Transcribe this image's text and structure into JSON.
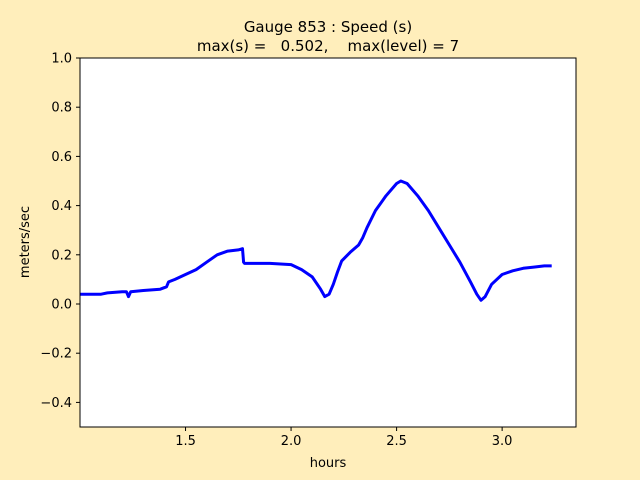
{
  "chart_data": {
    "type": "line",
    "title_line1": "Gauge 853 : Speed (s)",
    "title_line2": "max(s) =   0.502,    max(level) = 7",
    "xlabel": "hours",
    "ylabel": "meters/sec",
    "xlim": [
      1.0,
      3.35
    ],
    "ylim": [
      -0.5,
      1.0
    ],
    "xticks": [
      1.5,
      2.0,
      2.5,
      3.0
    ],
    "xtick_labels": [
      "1.5",
      "2.0",
      "2.5",
      "3.0"
    ],
    "yticks": [
      -0.4,
      -0.2,
      0.0,
      0.2,
      0.4,
      0.6,
      0.8,
      1.0
    ],
    "ytick_labels": [
      "−0.4",
      "−0.2",
      "0.0",
      "0.2",
      "0.4",
      "0.6",
      "0.8",
      "1.0"
    ],
    "grid": false,
    "series": [
      {
        "color": "#0000ff",
        "x": [
          1.0,
          1.1,
          1.13,
          1.2,
          1.22,
          1.23,
          1.24,
          1.3,
          1.38,
          1.41,
          1.42,
          1.45,
          1.5,
          1.55,
          1.6,
          1.65,
          1.7,
          1.75,
          1.77,
          1.775,
          1.78,
          1.82,
          1.9,
          2.0,
          2.05,
          2.1,
          2.14,
          2.16,
          2.18,
          2.2,
          2.22,
          2.24,
          2.28,
          2.32,
          2.34,
          2.36,
          2.4,
          2.45,
          2.5,
          2.52,
          2.55,
          2.6,
          2.65,
          2.7,
          2.75,
          2.8,
          2.85,
          2.88,
          2.9,
          2.92,
          2.95,
          3.0,
          3.05,
          3.1,
          3.15,
          3.2,
          3.235
        ],
        "y": [
          0.04,
          0.04,
          0.045,
          0.05,
          0.05,
          0.03,
          0.05,
          0.055,
          0.06,
          0.07,
          0.09,
          0.1,
          0.12,
          0.14,
          0.17,
          0.2,
          0.215,
          0.22,
          0.225,
          0.17,
          0.165,
          0.165,
          0.165,
          0.16,
          0.14,
          0.11,
          0.06,
          0.03,
          0.04,
          0.08,
          0.13,
          0.175,
          0.21,
          0.24,
          0.27,
          0.31,
          0.38,
          0.44,
          0.49,
          0.5,
          0.49,
          0.44,
          0.38,
          0.31,
          0.24,
          0.17,
          0.09,
          0.04,
          0.015,
          0.03,
          0.08,
          0.12,
          0.135,
          0.145,
          0.15,
          0.155,
          0.155
        ]
      }
    ]
  }
}
